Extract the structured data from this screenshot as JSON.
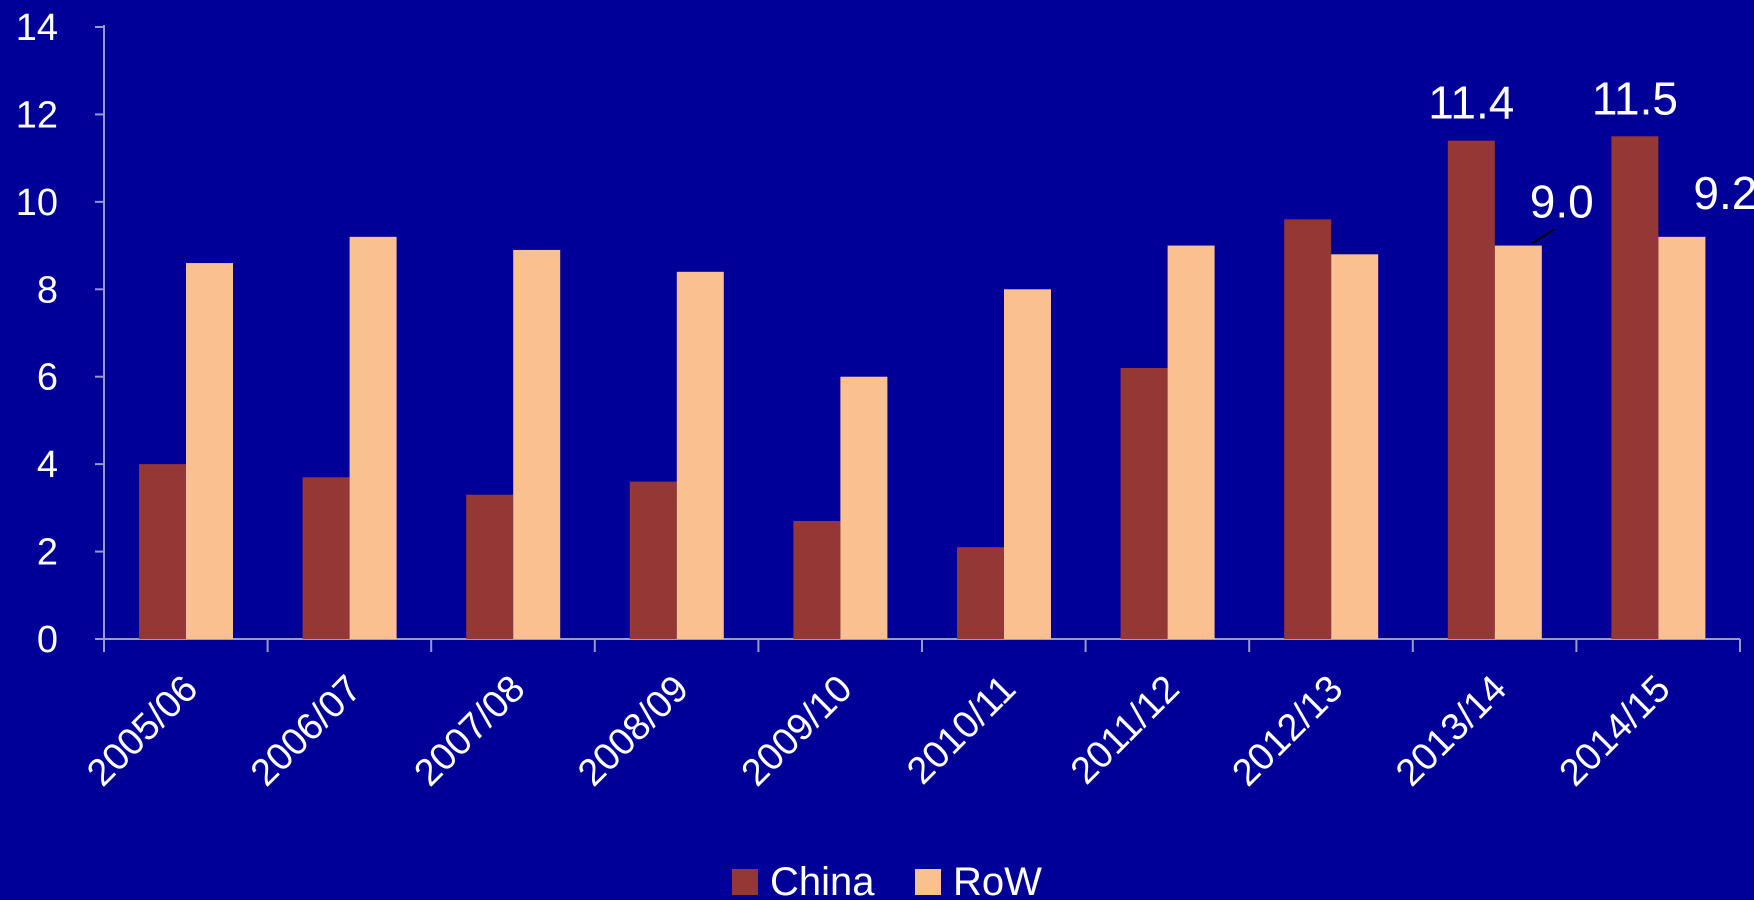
{
  "chart_data": {
    "type": "bar",
    "title": "",
    "xlabel": "",
    "ylabel": "",
    "ylim": [
      0,
      14
    ],
    "yticks": [
      0,
      2,
      4,
      6,
      8,
      10,
      12,
      14
    ],
    "grid": false,
    "legend_position": "bottom",
    "categories": [
      "2005/06",
      "2006/07",
      "2007/08",
      "2008/09",
      "2009/10",
      "2010/11",
      "2011/12",
      "2012/13",
      "2013/14",
      "2014/15"
    ],
    "series": [
      {
        "name": "China",
        "color": "#953735",
        "values": [
          4.0,
          3.7,
          3.3,
          3.6,
          2.7,
          2.1,
          6.2,
          9.6,
          11.4,
          11.5
        ]
      },
      {
        "name": "RoW",
        "color": "#FAC090",
        "values": [
          8.6,
          9.2,
          8.9,
          8.4,
          6.0,
          8.0,
          9.0,
          8.8,
          9.0,
          9.2
        ]
      }
    ],
    "data_labels": [
      {
        "series": 0,
        "index": 8,
        "text": "11.4"
      },
      {
        "series": 1,
        "index": 8,
        "text": "9.0"
      },
      {
        "series": 0,
        "index": 9,
        "text": "11.5"
      },
      {
        "series": 1,
        "index": 9,
        "text": "9.2"
      }
    ]
  }
}
